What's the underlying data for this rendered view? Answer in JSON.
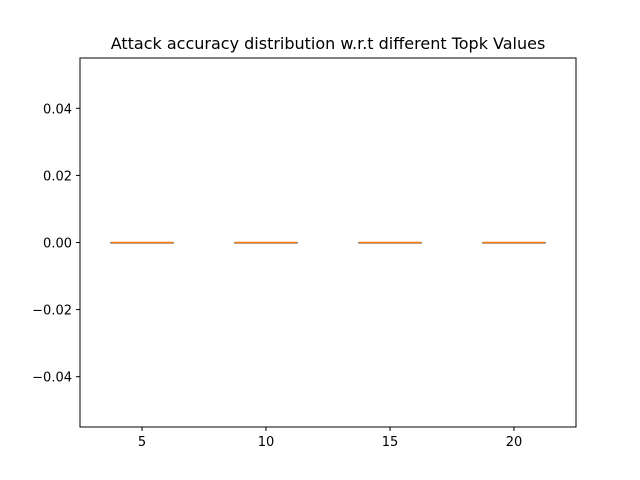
{
  "chart_data": {
    "type": "box",
    "title": "Attack accuracy distribution w.r.t different Topk Values",
    "xlabel": "",
    "ylabel": "",
    "categories": [
      "5",
      "10",
      "15",
      "20"
    ],
    "boxes": [
      {
        "category": "5",
        "min": 0.0,
        "q1": 0.0,
        "median": 0.0,
        "q3": 0.0,
        "max": 0.0
      },
      {
        "category": "10",
        "min": 0.0,
        "q1": 0.0,
        "median": 0.0,
        "q3": 0.0,
        "max": 0.0
      },
      {
        "category": "15",
        "min": 0.0,
        "q1": 0.0,
        "median": 0.0,
        "q3": 0.0,
        "max": 0.0
      },
      {
        "category": "20",
        "min": 0.0,
        "q1": 0.0,
        "median": 0.0,
        "q3": 0.0,
        "max": 0.0
      }
    ],
    "ylim": [
      -0.055,
      0.055
    ],
    "yticks": [
      0.04,
      0.02,
      0.0,
      -0.02,
      -0.04
    ],
    "ytick_labels": [
      "0.04",
      "0.02",
      "0.00",
      "−0.02",
      "−0.04"
    ],
    "grid": false,
    "colors": {
      "box": "#000000",
      "median": "#ff7f0e",
      "axes": "#000000"
    }
  }
}
